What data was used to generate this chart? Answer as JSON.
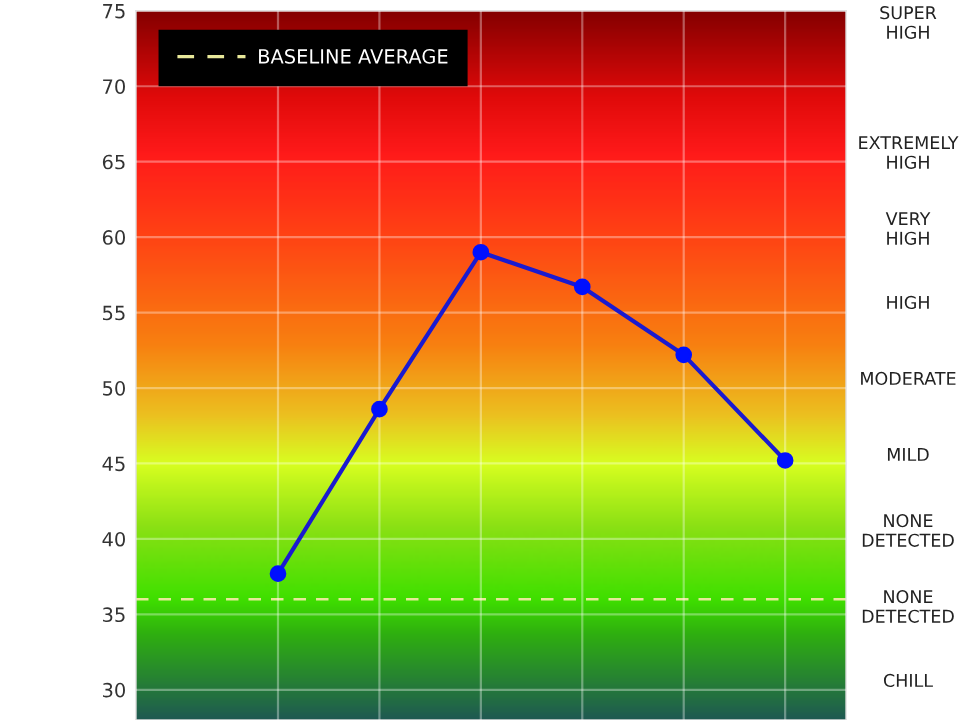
{
  "chart_data": {
    "type": "line",
    "categories": [
      null,
      null,
      null,
      null,
      null,
      null
    ],
    "series": [
      {
        "color": "#1a1ad0",
        "values": [
          37.7,
          48.6,
          59.0,
          56.7,
          52.2,
          45.2
        ]
      }
    ],
    "marker": "circle",
    "line_style": "solid",
    "ylim": [
      28,
      75
    ],
    "yticks": [
      30,
      35,
      40,
      45,
      50,
      55,
      60,
      65,
      70,
      75
    ],
    "annotations": [
      "SUPER\nHIGH",
      "EXTREMELY\nHIGH",
      "VERY\nHIGH",
      "HIGH",
      "MODERATE",
      "MILD",
      "NONE\nDETECTED",
      "NONE\nDETECTED",
      "CHILL"
    ],
    "ref_lines": [
      {
        "axis": "y",
        "value": 36.0,
        "label": "BASELINE AVERAGE",
        "color": "#e8e89a",
        "line_style": "dashed"
      }
    ],
    "grid": true,
    "legend": "top left"
  }
}
